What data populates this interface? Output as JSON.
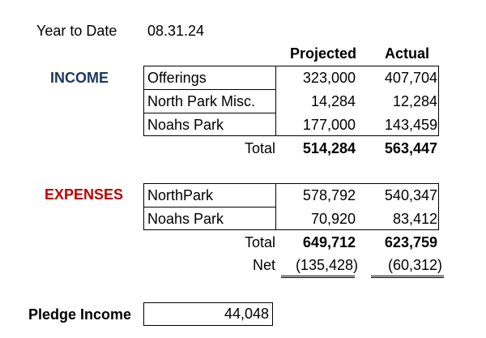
{
  "header": {
    "label": "Year to Date",
    "date": "08.31.24"
  },
  "columns": {
    "projected": "Projected",
    "actual": "Actual"
  },
  "income": {
    "label": "INCOME",
    "rows": [
      {
        "name": "Offerings",
        "projected": "323,000",
        "actual": "407,704"
      },
      {
        "name": "North Park Misc.",
        "projected": "14,284",
        "actual": "12,284"
      },
      {
        "name": "Noahs Park",
        "projected": "177,000",
        "actual": "143,459"
      }
    ],
    "total": {
      "label": "Total",
      "projected": "514,284",
      "actual": "563,447"
    }
  },
  "expenses": {
    "label": "EXPENSES",
    "rows": [
      {
        "name": "NorthPark",
        "projected": "578,792",
        "actual": "540,347"
      },
      {
        "name": "Noahs Park",
        "projected": "70,920",
        "actual": "83,412"
      }
    ],
    "total": {
      "label": "Total",
      "projected": "649,712",
      "actual": "623,759"
    },
    "net": {
      "label": "Net",
      "projected": "(135,428)",
      "actual": "(60,312)"
    }
  },
  "pledge": {
    "label": "Pledge Income",
    "value": "44,048"
  },
  "colors": {
    "income_label": "#1f3864",
    "expense_label": "#c00000"
  }
}
